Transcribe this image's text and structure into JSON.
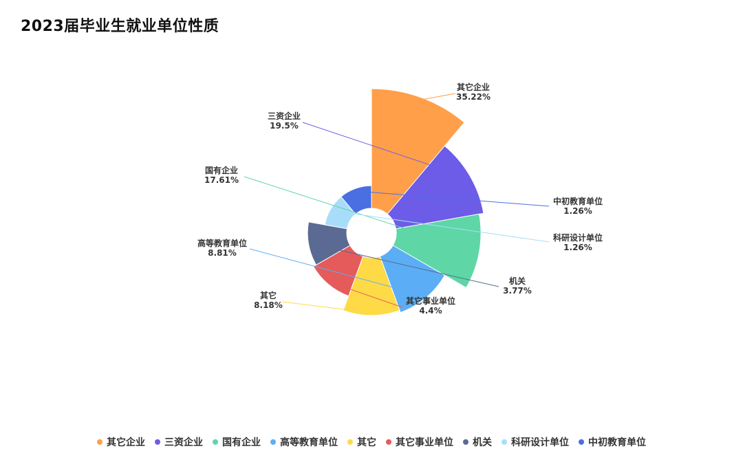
{
  "page": {
    "title": "2023届毕业生就业单位性质"
  },
  "chart_data": {
    "type": "pie",
    "variant": "rose",
    "title": "2023届毕业生就业单位性质",
    "unit": "%",
    "categories": [
      "其它企业",
      "三资企业",
      "国有企业",
      "高等教育单位",
      "其它",
      "其它事业单位",
      "机关",
      "科研设计单位",
      "中初教育单位"
    ],
    "values": [
      35.22,
      19.5,
      17.61,
      8.81,
      8.18,
      4.4,
      3.77,
      1.26,
      1.26
    ],
    "labels": [
      "35.22%",
      "19.5%",
      "17.61%",
      "8.81%",
      "8.18%",
      "4.4%",
      "3.77%",
      "1.26%",
      "1.26%"
    ],
    "colors": [
      "#FF9F4A",
      "#6C5CE7",
      "#5ED6A6",
      "#5BAEF5",
      "#FFDA47",
      "#E55B5B",
      "#5A6A93",
      "#A8DDFA",
      "#4A6FE3"
    ],
    "legend_position": "bottom",
    "legend_order": [
      "其它企业",
      "三资企业",
      "国有企业",
      "高等教育单位",
      "其它",
      "其它事业单位",
      "机关",
      "科研设计单位",
      "中初教育单位"
    ]
  }
}
